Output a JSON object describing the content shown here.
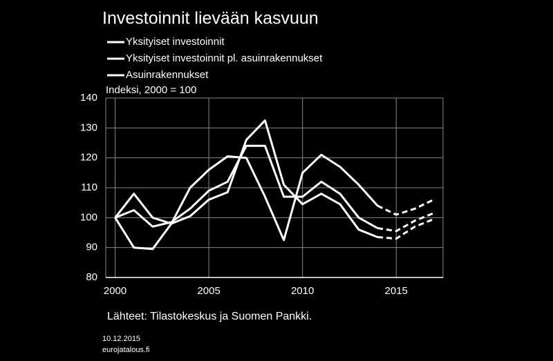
{
  "chart_data": {
    "type": "line",
    "title": "Investoinnit lievään kasvuun",
    "y_label": "Indeksi, 2000 = 100",
    "source": "Lähteet: Tilastokeskus ja Suomen Pankki.",
    "date": "10.12.2015",
    "site": "eurojatalous.fi",
    "x": [
      2000,
      2001,
      2002,
      2003,
      2004,
      2005,
      2006,
      2007,
      2008,
      2009,
      2010,
      2011,
      2012,
      2013,
      2014,
      2015,
      2016,
      2017
    ],
    "dashed_from": 2014,
    "series": [
      {
        "name": "Yksityiset investoinnit",
        "color": "#ffffff",
        "values": [
          100,
          102.5,
          97,
          98.5,
          103,
          109,
          112,
          124,
          124,
          107,
          107,
          112,
          108,
          100,
          96.5,
          95.5,
          99,
          101.5
        ]
      },
      {
        "name": "Yksityiset investoinnit pl. asuinrakennukset",
        "color": "#ffffff",
        "values": [
          100,
          90,
          89.5,
          98,
          100.5,
          106,
          108.5,
          126,
          132.5,
          111,
          104.5,
          108,
          104.5,
          96,
          93.5,
          93,
          97,
          99.5
        ]
      },
      {
        "name": "Asuinrakennukset",
        "color": "#ffffff",
        "values": [
          100,
          108,
          100,
          98,
          110,
          116,
          120.5,
          120,
          107,
          92.5,
          115,
          121,
          117,
          111,
          104,
          101,
          103,
          106
        ]
      }
    ],
    "xlim": [
      1999.5,
      2017.5
    ],
    "xticks": [
      2000,
      2005,
      2010,
      2015
    ],
    "ylim": [
      80,
      140
    ],
    "yticks": [
      80,
      90,
      100,
      110,
      120,
      130,
      140
    ],
    "grid": true,
    "legend": "top-left"
  }
}
